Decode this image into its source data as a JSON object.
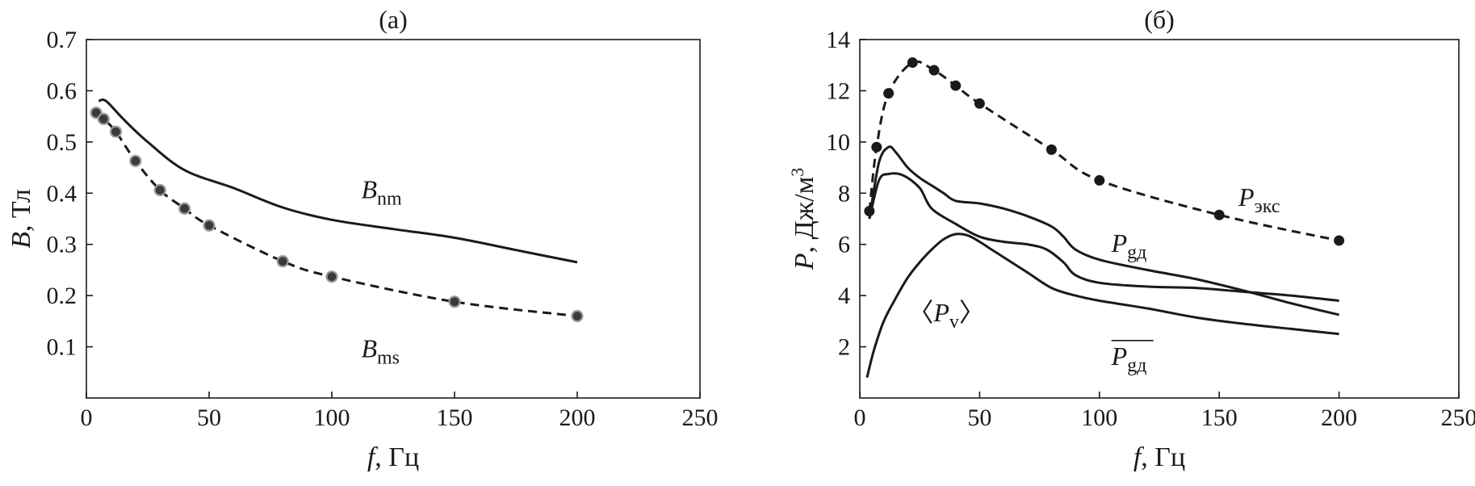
{
  "chart_data": [
    {
      "type": "line",
      "panel": "(a)",
      "title": "(a)",
      "xlabel_var": "f",
      "xlabel_unit": ", Гц",
      "ylabel_var": "B",
      "ylabel_unit": ", Тл",
      "xlim": [
        0,
        250
      ],
      "ylim": [
        0,
        0.7
      ],
      "xticks": [
        0,
        50,
        100,
        150,
        200,
        250
      ],
      "yticks": [
        0.1,
        0.2,
        0.3,
        0.4,
        0.5,
        0.6,
        0.7
      ],
      "xtick_labels": [
        "0",
        "50",
        "100",
        "150",
        "200",
        "250"
      ],
      "ytick_labels": [
        "0.1",
        "0.2",
        "0.3",
        "0.4",
        "0.5",
        "0.6",
        "0.7"
      ],
      "grid": false,
      "series": [
        {
          "name": "B_nm",
          "label_base": "B",
          "label_sub": "nm",
          "style": "solid",
          "markers": false,
          "label_at": [
            112,
            0.39
          ],
          "x": [
            5,
            8,
            15,
            25,
            40,
            60,
            80,
            100,
            125,
            150,
            175,
            200
          ],
          "y": [
            0.58,
            0.58,
            0.545,
            0.5,
            0.445,
            0.41,
            0.372,
            0.348,
            0.33,
            0.313,
            0.289,
            0.265
          ]
        },
        {
          "name": "B_ms",
          "label_base": "B",
          "label_sub": "ms",
          "style": "dashed",
          "markers": true,
          "marker_fill": "#3a3a3a",
          "label_at": [
            112,
            0.08
          ],
          "x": [
            4,
            7,
            12,
            20,
            30,
            40,
            50,
            80,
            100,
            150,
            200
          ],
          "y": [
            0.557,
            0.545,
            0.52,
            0.463,
            0.406,
            0.37,
            0.337,
            0.267,
            0.237,
            0.188,
            0.16
          ]
        }
      ]
    },
    {
      "type": "line",
      "panel": "(б)",
      "title": "(б)",
      "xlabel_var": "f",
      "xlabel_unit": ", Гц",
      "ylabel_var": "P",
      "ylabel_unit": ", Дж/м",
      "ylabel_sup": "3",
      "xlim": [
        0,
        250
      ],
      "ylim": [
        0,
        14
      ],
      "xticks": [
        0,
        50,
        100,
        150,
        200,
        250
      ],
      "yticks": [
        2,
        4,
        6,
        8,
        10,
        12,
        14
      ],
      "xtick_labels": [
        "0",
        "50",
        "100",
        "150",
        "200",
        "250"
      ],
      "ytick_labels": [
        "2",
        "4",
        "6",
        "8",
        "10",
        "12",
        "14"
      ],
      "grid": false,
      "series": [
        {
          "name": "P_экс",
          "label_base": "P",
          "label_sub": "экс",
          "style": "dashed",
          "markers": true,
          "marker_fill": "#1a1a1a",
          "label_at": [
            158,
            7.5
          ],
          "x": [
            4,
            7,
            12,
            22,
            31,
            40,
            50,
            80,
            100,
            150,
            200
          ],
          "y": [
            7.3,
            9.8,
            11.9,
            13.1,
            12.8,
            12.2,
            11.5,
            9.7,
            8.5,
            7.15,
            6.15
          ]
        },
        {
          "name": "P_gд",
          "label_base": "P",
          "label_sub": "gд",
          "style": "solid",
          "markers": false,
          "label_at": [
            105,
            5.7
          ],
          "x": [
            4,
            8,
            12,
            15,
            20,
            25,
            30,
            35,
            40,
            50,
            60,
            70,
            80,
            85,
            90,
            100,
            120,
            140,
            160,
            180,
            200
          ],
          "y": [
            7.0,
            9.2,
            9.8,
            9.6,
            9.0,
            8.6,
            8.3,
            8.0,
            7.7,
            7.6,
            7.4,
            7.1,
            6.7,
            6.3,
            5.8,
            5.4,
            5.0,
            4.65,
            4.2,
            3.7,
            3.25
          ]
        },
        {
          "name": "P_gд_mean",
          "label_base": "P",
          "label_sub": "gд",
          "label_overline": true,
          "style": "solid",
          "markers": false,
          "label_at": [
            105,
            1.3
          ],
          "x": [
            4,
            8,
            12,
            18,
            25,
            30,
            40,
            50,
            60,
            70,
            78,
            85,
            90,
            100,
            120,
            140,
            160,
            180,
            200
          ],
          "y": [
            7.0,
            8.5,
            8.75,
            8.7,
            8.2,
            7.4,
            6.8,
            6.3,
            6.1,
            6.0,
            5.8,
            5.3,
            4.8,
            4.5,
            4.35,
            4.3,
            4.15,
            4.0,
            3.8
          ]
        },
        {
          "name": "P_v",
          "label_open": "〈",
          "label_base": "P",
          "label_sub": "v",
          "label_close": "〉",
          "style": "solid",
          "markers": false,
          "label_at": [
            20,
            3.0
          ],
          "x": [
            3,
            6,
            10,
            15,
            20,
            25,
            30,
            35,
            40,
            45,
            50,
            55,
            60,
            70,
            80,
            90,
            100,
            120,
            140,
            160,
            180,
            200
          ],
          "y": [
            0.8,
            1.9,
            3.0,
            3.9,
            4.7,
            5.3,
            5.8,
            6.2,
            6.4,
            6.35,
            6.1,
            5.8,
            5.5,
            4.9,
            4.3,
            4.0,
            3.8,
            3.5,
            3.15,
            2.9,
            2.7,
            2.5
          ]
        }
      ]
    }
  ]
}
